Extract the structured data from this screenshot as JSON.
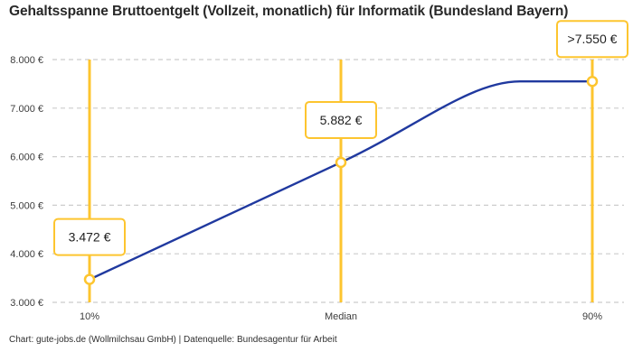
{
  "header": {
    "title": "Gehaltsspanne Bruttoentgelt (Vollzeit, monatlich) für Informatik (Bundesland Bayern)"
  },
  "chart_data": {
    "type": "line",
    "title": "Gehaltsspanne Bruttoentgelt (Vollzeit, monatlich) für Informatik (Bundesland Bayern)",
    "categories": [
      "10%",
      "Median",
      "90%"
    ],
    "values": [
      3472,
      5882,
      7550
    ],
    "point_labels": [
      "3.472 €",
      "5.882 €",
      ">7.550 €"
    ],
    "series": [
      {
        "name": "Bruttoentgelt",
        "values": [
          3472,
          5882,
          7550
        ]
      }
    ],
    "ylim": [
      3000,
      8000
    ],
    "y_ticks": [
      {
        "value": 8000,
        "label": "8.000 €"
      },
      {
        "value": 7000,
        "label": "7.000 €"
      },
      {
        "value": 6000,
        "label": "6.000 €"
      },
      {
        "value": 5000,
        "label": "5.000 €"
      },
      {
        "value": 4000,
        "label": "4.000 €"
      },
      {
        "value": 3000,
        "label": "3.000 €"
      }
    ],
    "xlabel": "",
    "ylabel": "",
    "legend": "none",
    "grid": "horizontal-dashed",
    "colors": {
      "accent_yellow": "#FDC52F",
      "line_blue": "#20399F",
      "grid": "#CCCCCC",
      "tick_text": "#3C3C3C",
      "label_text": "#1F1F1F",
      "marker_fill": "#FFFFFF"
    }
  },
  "footer": {
    "source": "Chart: gute-jobs.de (Wollmilchsau GmbH) | Datenquelle: Bundesagentur für Arbeit"
  }
}
